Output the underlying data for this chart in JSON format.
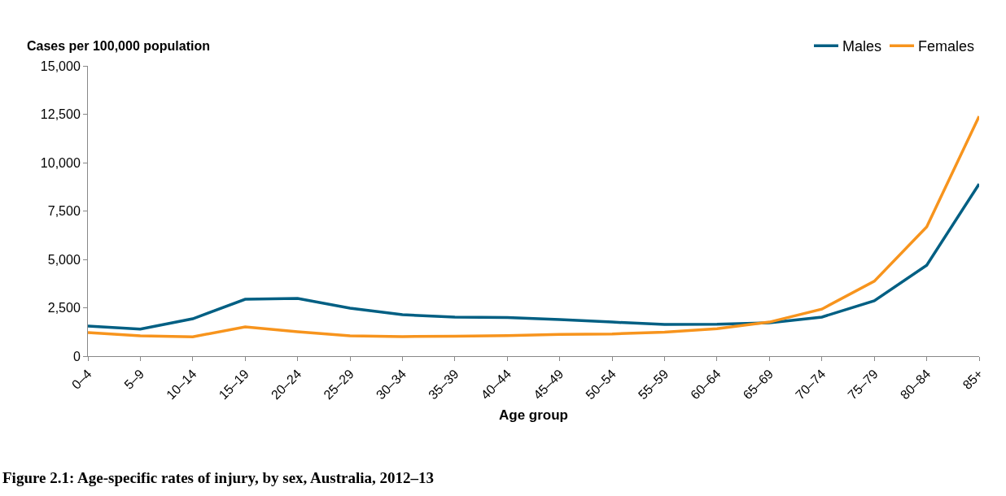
{
  "chart_data": {
    "type": "line",
    "ylabel": "Cases per 100,000 population",
    "xlabel": "Age group",
    "annotations": [
      "Figure 2.1: Age-specific rates of injury, by sex, Australia, 2012–13"
    ],
    "categories": [
      "0–4",
      "5–9",
      "10–14",
      "15–19",
      "20–24",
      "25–29",
      "30–34",
      "35–39",
      "40–44",
      "45–49",
      "50–54",
      "55–59",
      "60–64",
      "65–69",
      "70–74",
      "75–79",
      "80–84",
      "85+"
    ],
    "series": [
      {
        "name": "Males",
        "color": "#005f83",
        "values": [
          1550,
          1400,
          1930,
          2940,
          2980,
          2480,
          2140,
          2020,
          2000,
          1890,
          1760,
          1640,
          1650,
          1720,
          2020,
          2860,
          4700,
          8900
        ]
      },
      {
        "name": "Females",
        "color": "#f7941d",
        "values": [
          1220,
          1050,
          1000,
          1510,
          1260,
          1050,
          1010,
          1030,
          1060,
          1120,
          1150,
          1240,
          1420,
          1760,
          2430,
          3870,
          6680,
          12400
        ]
      }
    ],
    "ylim": [
      0,
      15000
    ],
    "yticks": [
      0,
      {
        "value": 2500,
        "label": "2,500"
      },
      {
        "value": 5000,
        "label": "5,000"
      },
      {
        "value": 7500,
        "label": "7,500"
      },
      {
        "value": 10000,
        "label": "10,000"
      },
      {
        "value": 12500,
        "label": "12,500"
      },
      {
        "value": 15000,
        "label": "15,000"
      }
    ],
    "grid": false,
    "legend": "top right",
    "marker": "none",
    "line_style": "solid"
  }
}
